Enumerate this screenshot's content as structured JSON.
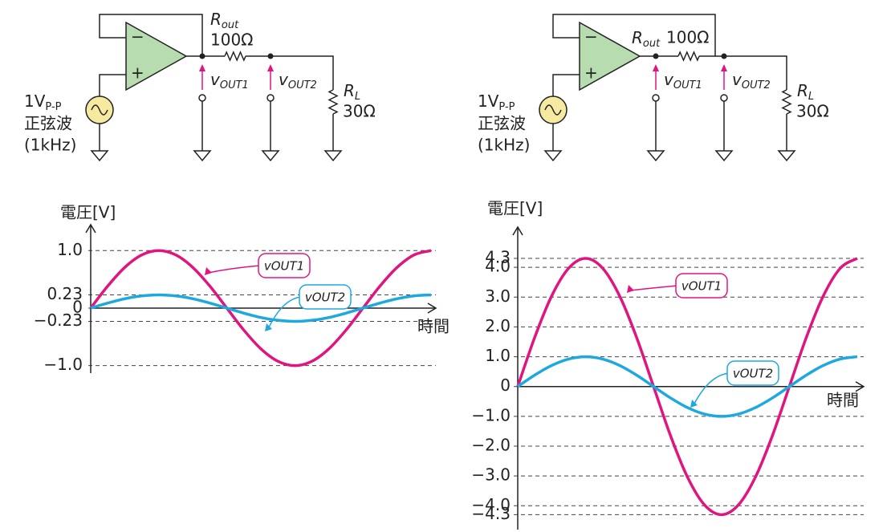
{
  "circuits": [
    {
      "source": {
        "amplitude": {
          "main": "1V",
          "sub": "P-P"
        },
        "waveform": "正弦波",
        "frequency": "(1kHz)"
      },
      "r_out": {
        "symbol": {
          "main": "R",
          "sub": "out"
        },
        "value": "100Ω"
      },
      "probe_1": {
        "main": "v",
        "sub": "OUT1"
      },
      "probe_2": {
        "main": "v",
        "sub": "OUT2"
      },
      "r_load": {
        "symbol": {
          "main": "R",
          "sub": "L"
        },
        "value": "30Ω"
      }
    },
    {
      "source": {
        "amplitude": {
          "main": "1V",
          "sub": "P-P"
        },
        "waveform": "正弦波",
        "frequency": "(1kHz)"
      },
      "r_out": {
        "symbol": {
          "main": "R",
          "sub": "out"
        },
        "value": "100Ω"
      },
      "probe_1": {
        "main": "v",
        "sub": "OUT1"
      },
      "probe_2": {
        "main": "v",
        "sub": "OUT2"
      },
      "r_load": {
        "symbol": {
          "main": "R",
          "sub": "L"
        },
        "value": "30Ω"
      }
    }
  ],
  "chart_data": [
    {
      "type": "line",
      "y_label": "電圧[V]",
      "x_label": "時間",
      "x": [
        0,
        0.0625,
        0.125,
        0.1875,
        0.25,
        0.3125,
        0.375,
        0.4375,
        0.5,
        0.5625,
        0.625,
        0.6875,
        0.75,
        0.8125,
        0.875,
        0.9375,
        1,
        1.0625,
        1.125,
        1.1875,
        1.25
      ],
      "xlim": [
        0,
        1.25
      ],
      "ylim": [
        -1.13,
        1.45
      ],
      "yticks": [
        {
          "value": 1,
          "label": "1.0"
        },
        0.23,
        0,
        {
          "value": -0.23,
          "label": "−0.23"
        },
        {
          "value": -1,
          "label": "−1.0"
        }
      ],
      "grid": true,
      "series": [
        {
          "name": "vOUT1",
          "color": "#e0157f",
          "values": [
            0,
            0.383,
            0.707,
            0.924,
            1,
            0.924,
            0.707,
            0.383,
            0,
            -0.383,
            -0.707,
            -0.924,
            -1,
            -0.924,
            -0.707,
            -0.383,
            0,
            0.383,
            0.707,
            0.924,
            1
          ]
        },
        {
          "name": "vOUT2",
          "color": "#1ea8e0",
          "values": [
            0,
            0.088,
            0.163,
            0.212,
            0.23,
            0.212,
            0.163,
            0.088,
            0,
            -0.088,
            -0.163,
            -0.212,
            -0.23,
            -0.212,
            -0.163,
            -0.088,
            0,
            0.088,
            0.163,
            0.212,
            0.23
          ]
        }
      ]
    },
    {
      "type": "line",
      "y_label": "電圧[V]",
      "x_label": "時間",
      "x": [
        0,
        0.0625,
        0.125,
        0.1875,
        0.25,
        0.3125,
        0.375,
        0.4375,
        0.5,
        0.5625,
        0.625,
        0.6875,
        0.75,
        0.8125,
        0.875,
        0.9375,
        1,
        1.0625,
        1.125,
        1.1875,
        1.25
      ],
      "xlim": [
        0,
        1.25
      ],
      "ylim": [
        -4.8,
        5.35
      ],
      "yticks": [
        4.3,
        {
          "value": 4,
          "label": "4.0"
        },
        {
          "value": 3,
          "label": "3.0"
        },
        {
          "value": 2,
          "label": "2.0"
        },
        {
          "value": 1,
          "label": "1.0"
        },
        0,
        {
          "value": -1,
          "label": "−1.0"
        },
        {
          "value": -2,
          "label": "−2.0"
        },
        {
          "value": -3,
          "label": "−3.0"
        },
        {
          "value": -4,
          "label": "−4.0"
        },
        {
          "value": -4.3,
          "label": "−4.3"
        }
      ],
      "grid": true,
      "series": [
        {
          "name": "vOUT1",
          "color": "#e0157f",
          "values": [
            0,
            1.65,
            3.04,
            3.97,
            4.3,
            3.97,
            3.04,
            1.65,
            0,
            -1.65,
            -3.04,
            -3.97,
            -4.3,
            -3.97,
            -3.04,
            -1.65,
            0,
            1.65,
            3.04,
            3.97,
            4.3
          ]
        },
        {
          "name": "vOUT2",
          "color": "#1ea8e0",
          "values": [
            0,
            0.383,
            0.707,
            0.924,
            1,
            0.924,
            0.707,
            0.383,
            0,
            -0.383,
            -0.707,
            -0.924,
            -1,
            -0.924,
            -0.707,
            -0.383,
            0,
            0.383,
            0.707,
            0.924,
            1
          ]
        }
      ]
    }
  ]
}
